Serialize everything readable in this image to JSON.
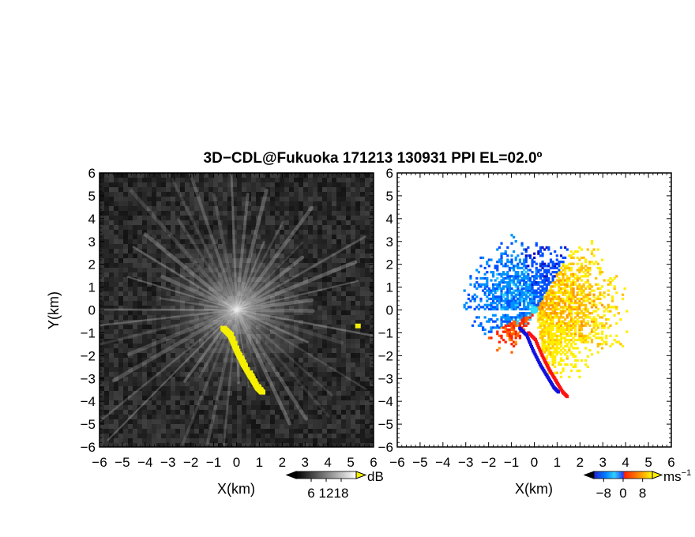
{
  "title": "3D−CDL@Fukuoka 171213 130931 PPI EL=02.0º",
  "chart_data": [
    {
      "type": "heatmap",
      "panel": "left",
      "quantity": "backscatter intensity (gray) with yellow overlay",
      "xlabel": "X(km)",
      "ylabel": "Y(km)",
      "xlim": [
        -6,
        6
      ],
      "ylim": [
        -6,
        6
      ],
      "xticks": [
        "−6",
        "−5",
        "−4",
        "−3",
        "−2",
        "−1",
        "0",
        "1",
        "2",
        "3",
        "4",
        "5",
        "6"
      ],
      "yticks": [
        "6",
        "5",
        "4",
        "3",
        "2",
        "1",
        "0",
        "−1",
        "−2",
        "−3",
        "−4",
        "−5",
        "−6"
      ],
      "colorbar": {
        "unit": "dB",
        "ticks": [
          "6",
          "12",
          "18"
        ],
        "range": [
          0,
          24
        ]
      },
      "yellow_band": [
        [
          -0.6,
          -0.8
        ],
        [
          -0.3,
          -1.1
        ],
        [
          0.0,
          -1.8
        ],
        [
          0.3,
          -2.4
        ],
        [
          0.6,
          -2.9
        ],
        [
          0.9,
          -3.4
        ],
        [
          1.1,
          -3.6
        ]
      ],
      "yellow_spot": [
        5.3,
        -0.7
      ]
    },
    {
      "type": "heatmap",
      "panel": "right",
      "quantity": "radial velocity",
      "xlabel": "X(km)",
      "xlim": [
        -6,
        6
      ],
      "ylim": [
        -6,
        6
      ],
      "xticks": [
        "−6",
        "−5",
        "−4",
        "−3",
        "−2",
        "−1",
        "0",
        "1",
        "2",
        "3",
        "4",
        "5",
        "6"
      ],
      "yticks": [
        "6",
        "5",
        "4",
        "3",
        "2",
        "1",
        "0",
        "−1",
        "−2",
        "−3",
        "−4",
        "−5",
        "−6"
      ],
      "colorbar": {
        "unit": "ms",
        "unit_exp": "−1",
        "ticks": [
          "−8",
          "0",
          "8"
        ],
        "range": [
          -12,
          12
        ]
      }
    }
  ]
}
